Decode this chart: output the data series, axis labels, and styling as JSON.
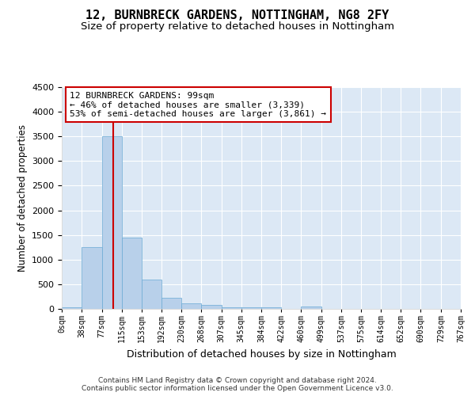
{
  "title": "12, BURNBRECK GARDENS, NOTTINGHAM, NG8 2FY",
  "subtitle": "Size of property relative to detached houses in Nottingham",
  "xlabel": "Distribution of detached houses by size in Nottingham",
  "ylabel": "Number of detached properties",
  "footer_line1": "Contains HM Land Registry data © Crown copyright and database right 2024.",
  "footer_line2": "Contains public sector information licensed under the Open Government Licence v3.0.",
  "bin_edges": [
    0,
    38,
    77,
    115,
    153,
    192,
    230,
    268,
    307,
    345,
    384,
    422,
    460,
    499,
    537,
    575,
    614,
    652,
    690,
    729,
    767
  ],
  "bar_heights": [
    30,
    1250,
    3500,
    1450,
    600,
    230,
    110,
    75,
    40,
    30,
    30,
    0,
    50,
    0,
    0,
    0,
    0,
    0,
    0,
    0
  ],
  "bar_color": "#b8d0ea",
  "bar_edge_color": "#6aaad4",
  "fig_bg_color": "#ffffff",
  "plot_bg_color": "#dce8f5",
  "grid_color": "#ffffff",
  "property_size": 99,
  "red_line_color": "#cc0000",
  "annotation_line1": "12 BURNBRECK GARDENS: 99sqm",
  "annotation_line2": "← 46% of detached houses are smaller (3,339)",
  "annotation_line3": "53% of semi-detached houses are larger (3,861) →",
  "annotation_box_color": "#cc0000",
  "ylim": [
    0,
    4500
  ],
  "tick_labels": [
    "0sqm",
    "38sqm",
    "77sqm",
    "115sqm",
    "153sqm",
    "192sqm",
    "230sqm",
    "268sqm",
    "307sqm",
    "345sqm",
    "384sqm",
    "422sqm",
    "460sqm",
    "499sqm",
    "537sqm",
    "575sqm",
    "614sqm",
    "652sqm",
    "690sqm",
    "729sqm",
    "767sqm"
  ],
  "title_fontsize": 11,
  "subtitle_fontsize": 9.5,
  "ylabel_fontsize": 8.5,
  "xlabel_fontsize": 9,
  "tick_fontsize": 7,
  "annotation_fontsize": 8,
  "footer_fontsize": 6.5
}
